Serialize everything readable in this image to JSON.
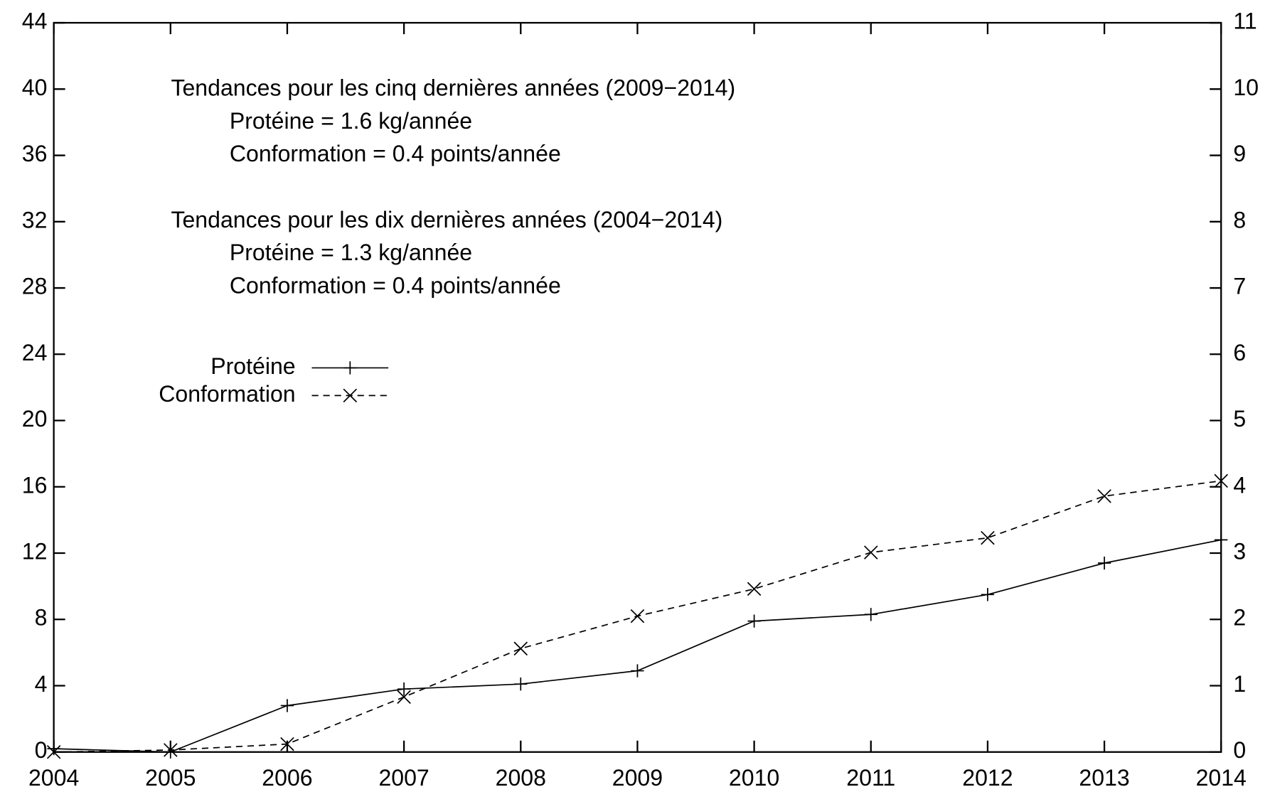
{
  "chart_data": {
    "type": "line",
    "x": [
      2004,
      2005,
      2006,
      2007,
      2008,
      2009,
      2010,
      2011,
      2012,
      2013,
      2014
    ],
    "xlim": [
      2004,
      2014
    ],
    "xticks": [
      2004,
      2005,
      2006,
      2007,
      2008,
      2009,
      2010,
      2011,
      2012,
      2013,
      2014
    ],
    "ylim": [
      0,
      44
    ],
    "yticks": [
      0,
      4,
      8,
      12,
      16,
      20,
      24,
      28,
      32,
      36,
      40,
      44
    ],
    "y2lim": [
      0,
      11
    ],
    "y2ticks": [
      0,
      1,
      2,
      3,
      4,
      5,
      6,
      7,
      8,
      9,
      10,
      11
    ],
    "legend": "upper left",
    "series": [
      {
        "name": "Protéine",
        "color": "#000000",
        "style": "solid",
        "marker": "plus",
        "values": [
          0.2,
          0,
          2.8,
          3.8,
          4.1,
          4.9,
          7.9,
          8.3,
          9.5,
          11.4,
          12.8
        ]
      },
      {
        "name": "Conformation",
        "color": "#000000",
        "style": "dashed",
        "marker": "cross",
        "axis": "y2",
        "values": [
          0,
          0.03,
          0.12,
          0.83,
          1.56,
          2.05,
          2.46,
          3.01,
          3.23,
          3.86,
          4.09
        ]
      }
    ],
    "annotations": [
      {
        "title": "Tendances pour les cinq dernières années (2009−2014)",
        "lines": [
          "Protéine = 1.6 kg/année",
          "Conformation = 0.4 points/année"
        ]
      },
      {
        "title": "Tendances pour les dix dernières années (2004−2014)",
        "lines": [
          "Protéine = 1.3 kg/année",
          "Conformation = 0.4 points/année"
        ]
      }
    ]
  }
}
